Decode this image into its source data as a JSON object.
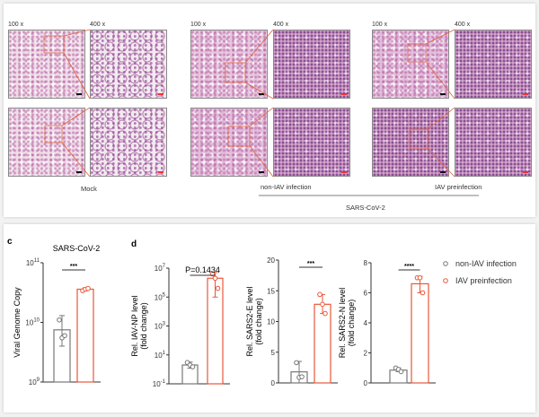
{
  "histology": {
    "magnifications": [
      "100 x",
      "400 x"
    ],
    "groups": [
      {
        "label": "Mock"
      },
      {
        "label": "non-IAV infection"
      },
      {
        "label": "IAV preinfection"
      }
    ],
    "bracket_label": "SARS-CoV-2",
    "inset_box_color": "#e0603a",
    "scale_bar_colors": {
      "100x": "#111111",
      "400x": "#e33333"
    }
  },
  "panel_labels": {
    "c": "c",
    "d": "d"
  },
  "legend": {
    "items": [
      {
        "label": "non-IAV infection",
        "color": "#777777"
      },
      {
        "label": "IAV preinfection",
        "color": "#e8583a"
      }
    ]
  },
  "chart_data": [
    {
      "type": "bar",
      "panel": "c",
      "title": "SARS-CoV-2",
      "ylabel": "Viral Genome Copy",
      "yscale": "log",
      "ylim": [
        1000000000.0,
        100000000000.0
      ],
      "yticks": [
        "10^9",
        "10^10",
        "10^11"
      ],
      "categories": [
        "non-IAV infection",
        "IAV preinfection"
      ],
      "values": [
        7500000000.0,
        36000000000.0
      ],
      "error": [
        [
          4000000000.0,
          13000000000.0
        ],
        [
          34000000000.0,
          38000000000.0
        ]
      ],
      "points": [
        [
          11000000000.0,
          5500000000.0,
          6000000000.0
        ],
        [
          34000000000.0,
          36000000000.0,
          37000000000.0
        ]
      ],
      "significance": "***"
    },
    {
      "type": "bar",
      "panel": "d",
      "ylabel": "Rel. IAV-NP level (fold change)",
      "yscale": "log",
      "ylim": [
        0.1,
        10000000.0
      ],
      "yticks": [
        "10^-1",
        "10^1",
        "10^3",
        "10^5",
        "10^7"
      ],
      "categories": [
        "non-IAV infection",
        "IAV preinfection"
      ],
      "values": [
        2,
        2000000.0
      ],
      "error": [
        [
          1.2,
          3.2
        ],
        [
          100000.0,
          5000000.0
        ]
      ],
      "points": [
        [
          3,
          2,
          1.5
        ],
        [
          4000000.0,
          2000000.0,
          400000.0
        ]
      ],
      "significance": "P=0.1434"
    },
    {
      "type": "bar",
      "panel": "d",
      "ylabel": "Rel. SARS2-E level (fold change)",
      "yscale": "linear",
      "ylim": [
        0,
        20
      ],
      "yticks": [
        "0",
        "5",
        "10",
        "15",
        "20"
      ],
      "categories": [
        "non-IAV infection",
        "IAV preinfection"
      ],
      "values": [
        1.8,
        12.8
      ],
      "error": [
        [
          0,
          3.5
        ],
        [
          11.3,
          14.4
        ]
      ],
      "points": [
        [
          3.3,
          0.9,
          1.0
        ],
        [
          14.4,
          12.8,
          11.3
        ]
      ],
      "significance": "***"
    },
    {
      "type": "bar",
      "panel": "d",
      "ylabel": "Rel. SARS2-N level (fold change)",
      "yscale": "linear",
      "ylim": [
        0,
        8
      ],
      "yticks": [
        "0",
        "2",
        "4",
        "6",
        "8"
      ],
      "categories": [
        "non-IAV infection",
        "IAV preinfection"
      ],
      "values": [
        0.85,
        6.6
      ],
      "error": [
        [
          0.75,
          1.0
        ],
        [
          6.0,
          7.1
        ]
      ],
      "points": [
        [
          1.0,
          0.9,
          0.75
        ],
        [
          7.0,
          7.0,
          6.0
        ]
      ],
      "significance": "****"
    }
  ]
}
